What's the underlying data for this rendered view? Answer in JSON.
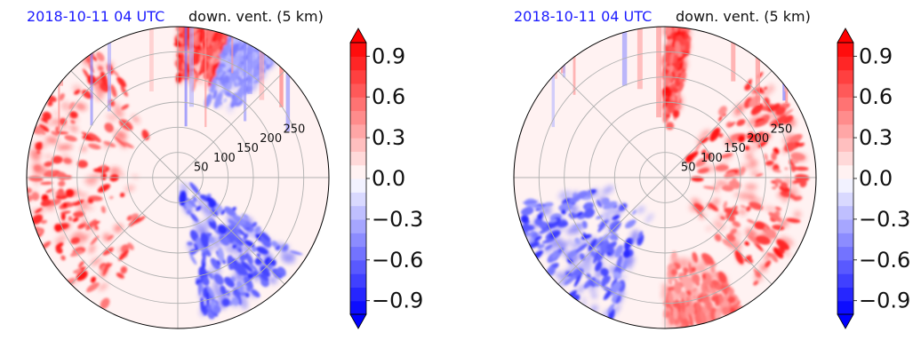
{
  "chart_data": [
    {
      "type": "heatmap",
      "projection": "polar",
      "title_left": "2018-10-11 04 UTC",
      "title_right": "down. vent. (5 km)",
      "radial_ticks": [
        50,
        100,
        150,
        200,
        250
      ],
      "rlim": [
        0,
        300
      ],
      "grid": true,
      "colormap": "bwr",
      "colorbar": {
        "ticks": [
          -0.9,
          -0.6,
          -0.3,
          0.0,
          0.3,
          0.6,
          0.9
        ],
        "tick_labels": [
          "−0.9",
          "−0.6",
          "−0.3",
          "0.0",
          "0.3",
          "0.6",
          "0.9"
        ],
        "range": [
          -1.0,
          1.0
        ],
        "extend": "both"
      },
      "regions": [
        {
          "azimuth_deg": [
            210,
            330
          ],
          "range_km": [
            80,
            300
          ],
          "value": 0.9
        },
        {
          "azimuth_deg": [
            120,
            170
          ],
          "range_km": [
            20,
            280
          ],
          "value": -0.8
        },
        {
          "azimuth_deg": [
            0,
            20
          ],
          "range_km": [
            180,
            300
          ],
          "value": 0.9
        },
        {
          "azimuth_deg": [
            20,
            40
          ],
          "range_km": [
            160,
            300
          ],
          "value": -0.5
        }
      ]
    },
    {
      "type": "heatmap",
      "projection": "polar",
      "title_left": "2018-10-11 04 UTC",
      "title_right": "down. vent. (5 km)",
      "radial_ticks": [
        50,
        100,
        150,
        200,
        250
      ],
      "rlim": [
        0,
        300
      ],
      "grid": true,
      "colormap": "bwr",
      "colorbar": {
        "ticks": [
          -0.9,
          -0.6,
          -0.3,
          0.0,
          0.3,
          0.6,
          0.9
        ],
        "tick_labels": [
          "−0.9",
          "−0.6",
          "−0.3",
          "0.0",
          "0.3",
          "0.6",
          "0.9"
        ],
        "range": [
          -1.0,
          1.0
        ],
        "extend": "both"
      },
      "regions": [
        {
          "azimuth_deg": [
            40,
            140
          ],
          "range_km": [
            50,
            280
          ],
          "value": 0.9
        },
        {
          "azimuth_deg": [
            200,
            260
          ],
          "range_km": [
            60,
            300
          ],
          "value": -0.8
        },
        {
          "azimuth_deg": [
            0,
            10
          ],
          "range_km": [
            100,
            300
          ],
          "value": 0.9
        },
        {
          "azimuth_deg": [
            150,
            180
          ],
          "range_km": [
            150,
            300
          ],
          "value": 0.7
        }
      ]
    }
  ]
}
